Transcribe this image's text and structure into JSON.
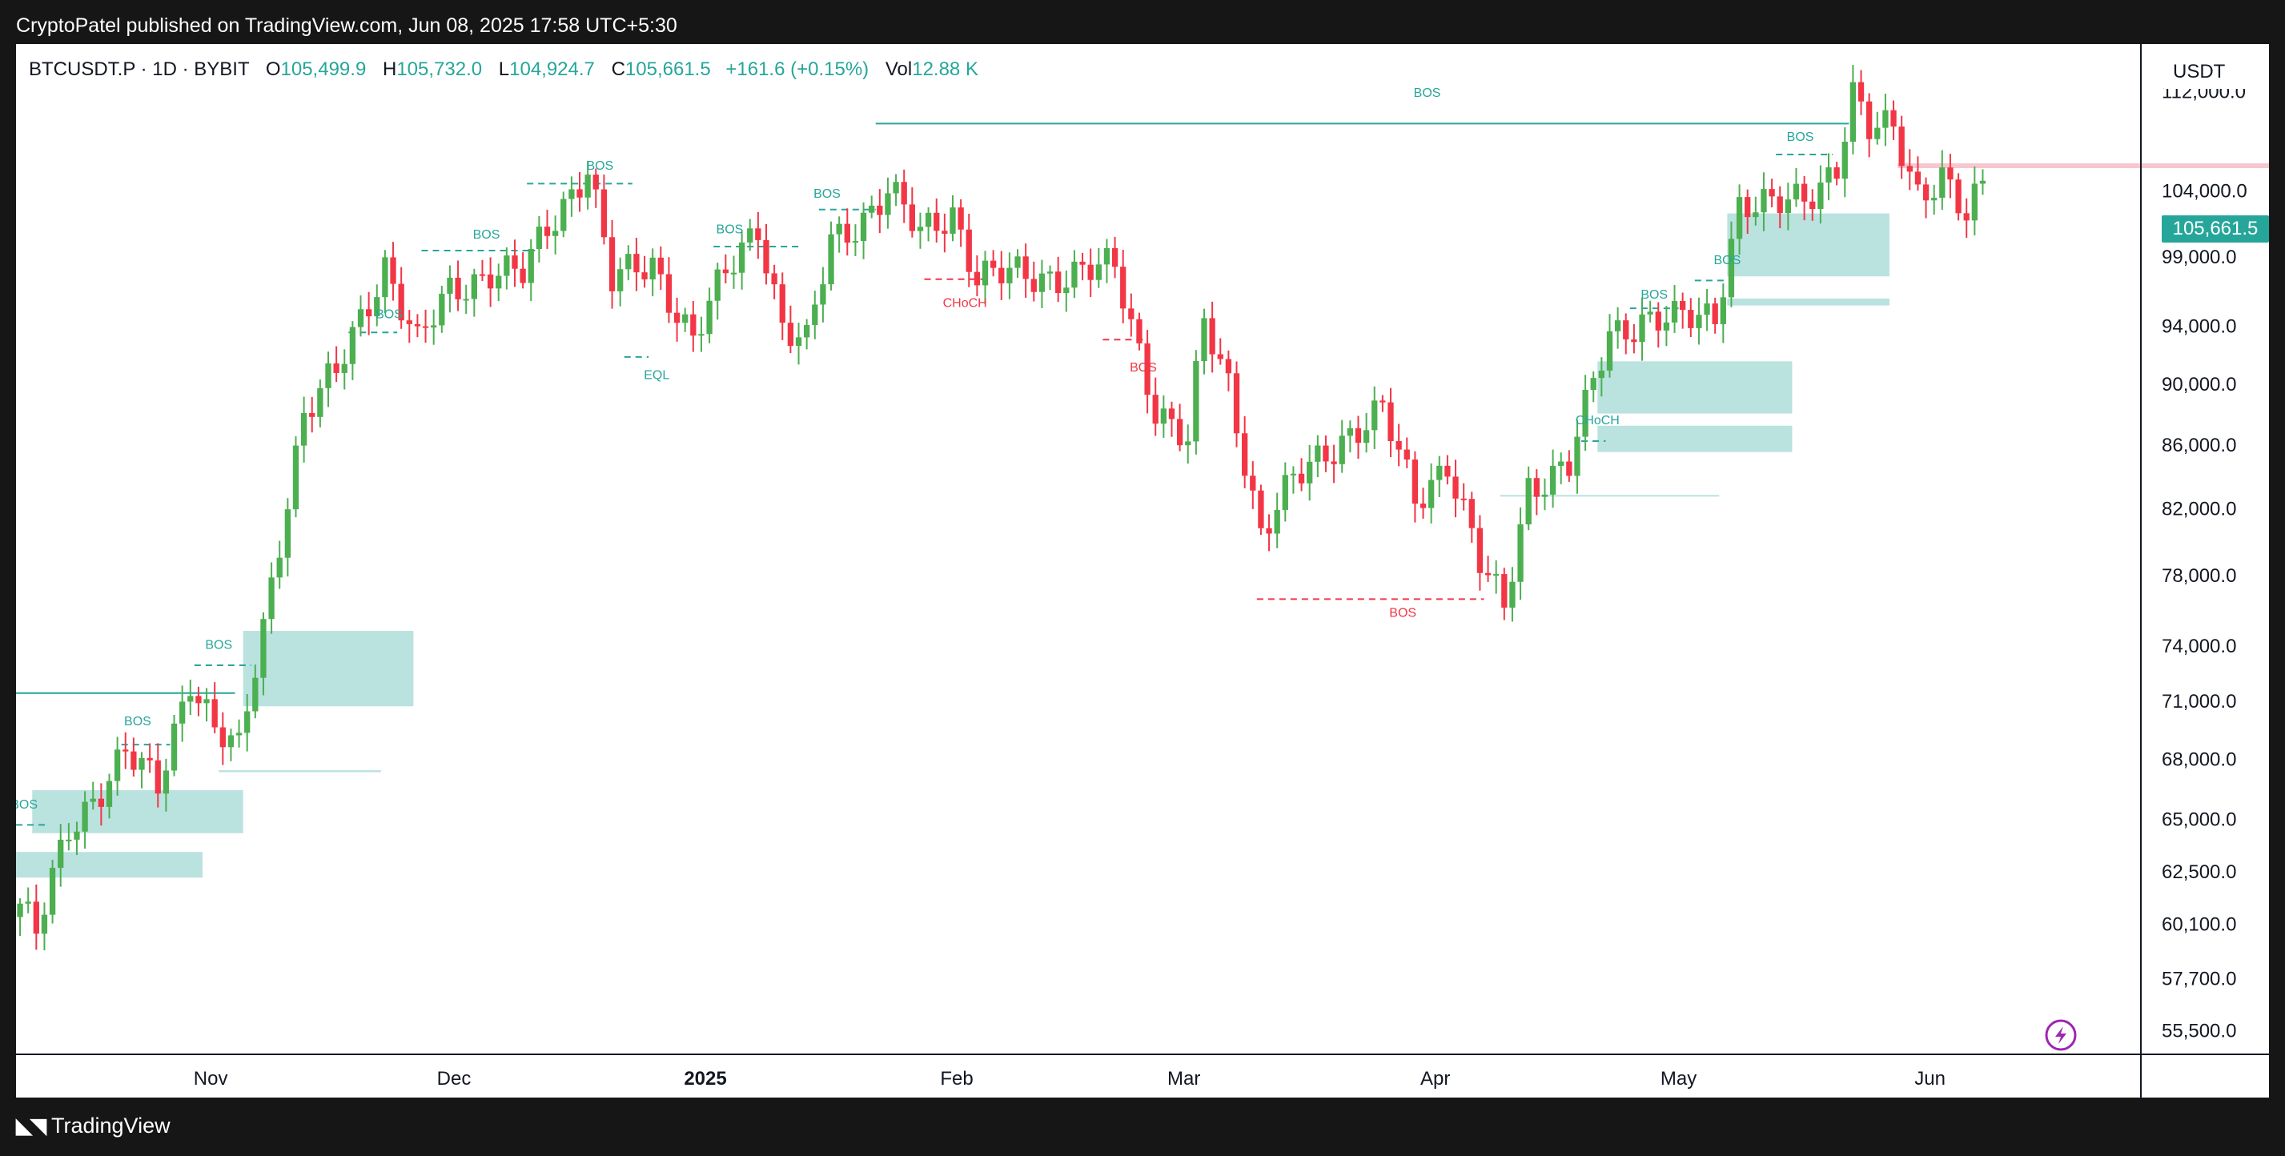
{
  "header": {
    "published": "CryptoPatel published on TradingView.com, Jun 08, 2025 17:58 UTC+5:30"
  },
  "legend": {
    "symbol": "BTCUSDT.P · 1D · BYBIT",
    "o_label": "O",
    "o_value": "105,499.9",
    "h_label": "H",
    "h_value": "105,732.0",
    "l_label": "L",
    "l_value": "104,924.7",
    "c_label": "C",
    "c_value": "105,661.5",
    "change": "+161.6 (+0.15%)",
    "vol_label": "Vol",
    "vol_value": "12.88 K"
  },
  "price_axis": {
    "currency": "USDT",
    "current_price": "105,661.5"
  },
  "footer": {
    "brand": "TradingView"
  },
  "colors": {
    "up": "#4caf50",
    "down": "#f23645",
    "zone": "#b2dfdb",
    "structure": "#26a69a",
    "accent": "#089981"
  },
  "chart_data": {
    "type": "candlestick",
    "y_ticks": [
      55500,
      57700,
      60100,
      62500,
      65000,
      68000,
      71000,
      74000,
      78000,
      82000,
      86000,
      90000,
      94000,
      99000,
      104000,
      112000
    ],
    "y_tick_labels": [
      "55,500.0",
      "57,700.0",
      "60,100.0",
      "62,500.0",
      "65,000.0",
      "68,000.0",
      "71,000.0",
      "74,000.0",
      "78,000.0",
      "82,000.0",
      "86,000.0",
      "90,000.0",
      "94,000.0",
      "99,000.0",
      "104,000.0",
      "112,000.0"
    ],
    "x_labels": [
      {
        "label": "Nov",
        "date": "2024-11-01",
        "bold": false
      },
      {
        "label": "Dec",
        "date": "2024-12-01",
        "bold": false
      },
      {
        "label": "2025",
        "date": "2025-01-01",
        "bold": true
      },
      {
        "label": "Feb",
        "date": "2025-02-01",
        "bold": false
      },
      {
        "label": "Mar",
        "date": "2025-03-01",
        "bold": false
      },
      {
        "label": "Apr",
        "date": "2025-04-01",
        "bold": false
      },
      {
        "label": "May",
        "date": "2025-05-01",
        "bold": false
      },
      {
        "label": "Jun",
        "date": "2025-06-01",
        "bold": false
      }
    ],
    "x_range": [
      "2024-10-08",
      "2025-06-27"
    ],
    "y_range": [
      54500,
      116000
    ],
    "waypoints": [
      [
        "2024-10-08",
        61000
      ],
      [
        "2024-10-10",
        59500
      ],
      [
        "2024-10-14",
        64500
      ],
      [
        "2024-10-21",
        68200
      ],
      [
        "2024-10-25",
        66500
      ],
      [
        "2024-10-29",
        72400
      ],
      [
        "2024-11-01",
        69500
      ],
      [
        "2024-11-04",
        68200
      ],
      [
        "2024-11-07",
        75000
      ],
      [
        "2024-11-12",
        88000
      ],
      [
        "2024-11-16",
        90500
      ],
      [
        "2024-11-22",
        98500
      ],
      [
        "2024-11-26",
        92500
      ],
      [
        "2024-11-30",
        96400
      ],
      [
        "2024-12-05",
        98000
      ],
      [
        "2024-12-09",
        97500
      ],
      [
        "2024-12-12",
        101000
      ],
      [
        "2024-12-17",
        106000
      ],
      [
        "2024-12-20",
        97000
      ],
      [
        "2024-12-25",
        98500
      ],
      [
        "2024-12-30",
        93000
      ],
      [
        "2025-01-03",
        97500
      ],
      [
        "2025-01-07",
        101500
      ],
      [
        "2025-01-10",
        94000
      ],
      [
        "2025-01-13",
        92500
      ],
      [
        "2025-01-16",
        100000
      ],
      [
        "2025-01-20",
        102000
      ],
      [
        "2025-01-23",
        104000
      ],
      [
        "2025-01-27",
        100500
      ],
      [
        "2025-01-31",
        102500
      ],
      [
        "2025-02-03",
        97500
      ],
      [
        "2025-02-10",
        97500
      ],
      [
        "2025-02-20",
        98000
      ],
      [
        "2025-02-25",
        88500
      ],
      [
        "2025-03-01",
        86000
      ],
      [
        "2025-03-03",
        94000
      ],
      [
        "2025-03-06",
        90000
      ],
      [
        "2025-03-10",
        80500
      ],
      [
        "2025-03-14",
        83500
      ],
      [
        "2025-03-20",
        86500
      ],
      [
        "2025-03-25",
        88000
      ],
      [
        "2025-03-29",
        82500
      ],
      [
        "2025-04-02",
        85000
      ],
      [
        "2025-04-06",
        78500
      ],
      [
        "2025-04-09",
        76000
      ],
      [
        "2025-04-12",
        83500
      ],
      [
        "2025-04-17",
        84500
      ],
      [
        "2025-04-22",
        93500
      ],
      [
        "2025-04-26",
        94500
      ],
      [
        "2025-04-30",
        94200
      ],
      [
        "2025-05-05",
        94800
      ],
      [
        "2025-05-08",
        103000
      ],
      [
        "2025-05-12",
        102500
      ],
      [
        "2025-05-16",
        103500
      ],
      [
        "2025-05-20",
        106000
      ],
      [
        "2025-05-22",
        111500
      ],
      [
        "2025-05-24",
        108500
      ],
      [
        "2025-05-27",
        109000
      ],
      [
        "2025-05-30",
        104000
      ],
      [
        "2025-06-02",
        105000
      ],
      [
        "2025-06-05",
        101500
      ],
      [
        "2025-06-08",
        105600
      ]
    ],
    "annotations": {
      "bos_labels": [
        {
          "text": "BOS",
          "date": "2024-10-09",
          "price": 65500,
          "type": "bullish"
        },
        {
          "text": "BOS",
          "date": "2024-10-23",
          "price": 69700,
          "type": "bullish"
        },
        {
          "text": "BOS",
          "date": "2024-11-02",
          "price": 73800,
          "type": "bullish"
        },
        {
          "text": "BOS",
          "date": "2024-11-23",
          "price": 94500,
          "type": "bullish"
        },
        {
          "text": "BOS",
          "date": "2024-12-05",
          "price": 100300,
          "type": "bullish"
        },
        {
          "text": "BOS",
          "date": "2024-12-19",
          "price": 105600,
          "type": "bullish"
        },
        {
          "text": "BOS",
          "date": "2025-01-04",
          "price": 100700,
          "type": "bullish"
        },
        {
          "text": "BOS",
          "date": "2025-01-16",
          "price": 103400,
          "type": "bullish"
        },
        {
          "text": "BOS",
          "date": "2025-03-31",
          "price": 111500,
          "type": "bullish"
        },
        {
          "text": "BOS",
          "date": "2025-02-24",
          "price": 90800,
          "type": "bearish"
        },
        {
          "text": "BOS",
          "date": "2025-03-28",
          "price": 75600,
          "type": "bearish"
        },
        {
          "text": "BOS",
          "date": "2025-04-28",
          "price": 95900,
          "type": "bullish"
        },
        {
          "text": "BOS",
          "date": "2025-05-07",
          "price": 98400,
          "type": "bullish"
        },
        {
          "text": "BOS",
          "date": "2025-05-16",
          "price": 107900,
          "type": "bullish"
        }
      ],
      "choch_labels": [
        {
          "text": "CHoCH",
          "date": "2025-02-02",
          "price": 95300,
          "type": "bearish"
        },
        {
          "text": "CHoCH",
          "date": "2025-04-21",
          "price": 87300,
          "type": "bullish"
        }
      ],
      "eql_label": {
        "text": "EQL",
        "date": "2024-12-26",
        "price": 90300
      }
    }
  }
}
